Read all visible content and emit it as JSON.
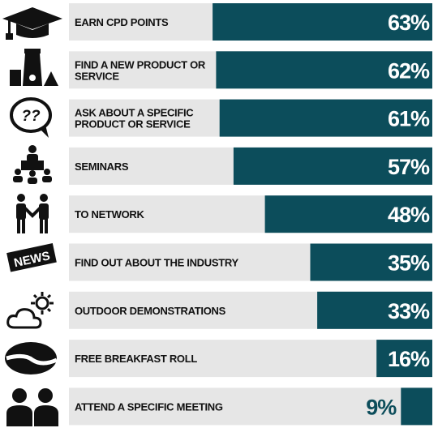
{
  "chart_data": {
    "type": "bar",
    "orientation": "horizontal",
    "categories": [
      "EARN CPD POINTS",
      "FIND A NEW PRODUCT OR SERVICE",
      "ASK ABOUT A SPECIFIC PRODUCT OR SERVICE",
      "SEMINARS",
      "TO NETWORK",
      "FIND OUT ABOUT THE INDUSTRY",
      "OUTDOOR DEMONSTRATIONS",
      "FREE BREAKFAST ROLL",
      "ATTEND A SPECIFIC MEETING"
    ],
    "values": [
      63,
      62,
      61,
      57,
      48,
      35,
      33,
      16,
      9
    ],
    "value_labels": [
      "63%",
      "62%",
      "61%",
      "57%",
      "48%",
      "35%",
      "33%",
      "16%",
      "9%"
    ],
    "color": "#0c4d5b",
    "background_color": "#e6e6e6"
  },
  "icons": {
    "question": "??",
    "news": "NEWS"
  }
}
